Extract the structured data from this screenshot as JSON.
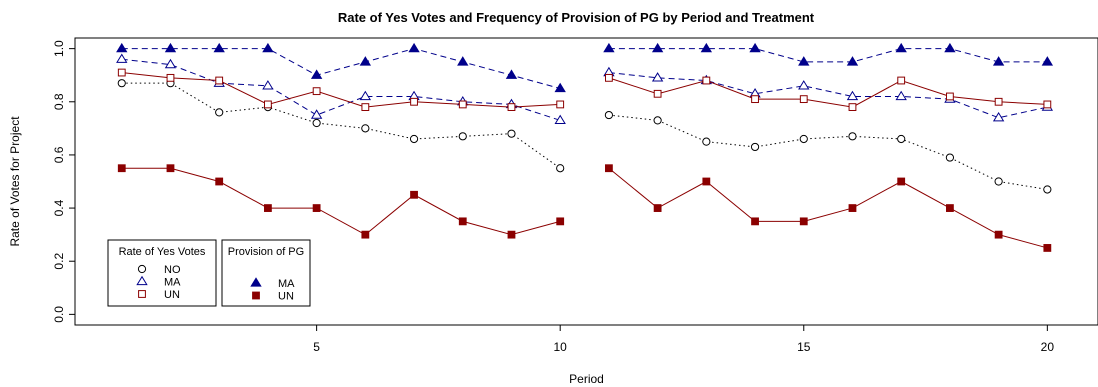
{
  "chart_data": {
    "type": "line",
    "title": "Rate of Yes Votes and Frequency of Provision of PG by Period and Treatment",
    "xlabel": "Period",
    "ylabel": "Rate of Votes for Project",
    "xlim": [
      0.04,
      21.04
    ],
    "ylim": [
      -0.04,
      1.04
    ],
    "xticks": [
      5,
      10,
      15,
      20
    ],
    "yticks": [
      0.0,
      0.2,
      0.4,
      0.6,
      0.8,
      1.0
    ],
    "ytick_labels": [
      "0.0",
      "0.2",
      "0.4",
      "0.6",
      "0.8",
      "1.0"
    ],
    "grid": false,
    "segments": [
      [
        1,
        10
      ],
      [
        11,
        20
      ]
    ],
    "x": [
      1,
      2,
      3,
      4,
      5,
      6,
      7,
      8,
      9,
      10,
      11,
      12,
      13,
      14,
      15,
      16,
      17,
      18,
      19,
      20
    ],
    "series": [
      {
        "group": "Rate of Yes Votes",
        "name": "NO",
        "color": "#000000",
        "marker": "circle-open",
        "line": "dotted",
        "values": [
          0.87,
          0.87,
          0.76,
          0.78,
          0.72,
          0.7,
          0.66,
          0.67,
          0.68,
          0.55,
          0.75,
          0.73,
          0.65,
          0.63,
          0.66,
          0.67,
          0.66,
          0.59,
          0.5,
          0.47
        ]
      },
      {
        "group": "Rate of Yes Votes",
        "name": "MA",
        "color": "#00008B",
        "marker": "triangle-open",
        "line": "dashed",
        "values": [
          0.96,
          0.94,
          0.87,
          0.86,
          0.75,
          0.82,
          0.82,
          0.8,
          0.79,
          0.73,
          0.91,
          0.89,
          0.88,
          0.83,
          0.86,
          0.82,
          0.82,
          0.81,
          0.74,
          0.78
        ]
      },
      {
        "group": "Rate of Yes Votes",
        "name": "UN",
        "color": "#8B0000",
        "marker": "square-open",
        "line": "solid",
        "values": [
          0.91,
          0.89,
          0.88,
          0.79,
          0.84,
          0.78,
          0.8,
          0.79,
          0.78,
          0.79,
          0.89,
          0.83,
          0.88,
          0.81,
          0.81,
          0.78,
          0.88,
          0.82,
          0.8,
          0.79
        ]
      },
      {
        "group": "Provision of PG",
        "name": "MA",
        "color": "#00008B",
        "marker": "triangle-filled",
        "line": "dashed",
        "values": [
          1.0,
          1.0,
          1.0,
          1.0,
          0.9,
          0.95,
          1.0,
          0.95,
          0.9,
          0.85,
          1.0,
          1.0,
          1.0,
          1.0,
          0.95,
          0.95,
          1.0,
          1.0,
          0.95,
          0.95
        ]
      },
      {
        "group": "Provision of PG",
        "name": "UN",
        "color": "#8B0000",
        "marker": "square-filled",
        "line": "solid",
        "values": [
          0.55,
          0.55,
          0.5,
          0.4,
          0.4,
          0.3,
          0.45,
          0.35,
          0.3,
          0.35,
          0.55,
          0.4,
          0.5,
          0.35,
          0.35,
          0.4,
          0.5,
          0.4,
          0.3,
          0.25
        ]
      }
    ],
    "legends": [
      {
        "title": "Rate of Yes Votes",
        "entries": [
          {
            "label": "NO",
            "marker": "circle-open",
            "color": "#000000"
          },
          {
            "label": "MA",
            "marker": "triangle-open",
            "color": "#00008B"
          },
          {
            "label": "UN",
            "marker": "square-open",
            "color": "#8B0000"
          }
        ]
      },
      {
        "title": "Provision of PG",
        "entries": [
          {
            "label": "MA",
            "marker": "triangle-filled",
            "color": "#00008B"
          },
          {
            "label": "UN",
            "marker": "square-filled",
            "color": "#8B0000"
          }
        ]
      }
    ],
    "legend_position": "bottom-left"
  }
}
